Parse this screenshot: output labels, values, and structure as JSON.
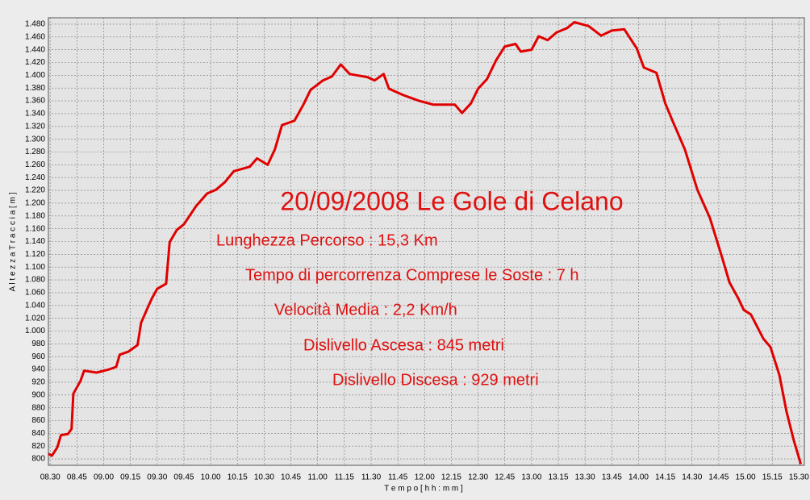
{
  "chart_data": {
    "type": "line",
    "title": "20/09/2008 Le Gole di Celano",
    "annotations": [
      "Lunghezza Percorso : 15,3 Km",
      "Tempo di percorrenza Comprese le Soste : 7 h",
      "Velocità Media : 2,2 Km/h",
      "Dislivello Ascesa : 845 metri",
      "Dislivello Discesa : 929 metri"
    ],
    "x_label": "T e m p o   [ h h : m m ]",
    "y_label": "A l t e z z a   T r a c c i a   [ m ]",
    "x": [
      509,
      511,
      514,
      516,
      520,
      522,
      523,
      527,
      529,
      536,
      543,
      547,
      549,
      554,
      559,
      561,
      564,
      567,
      570,
      575,
      577,
      581,
      585,
      592,
      598,
      603,
      608,
      613,
      622,
      626,
      632,
      636,
      640,
      647,
      652,
      656,
      663,
      668,
      673,
      678,
      688,
      692,
      697,
      700,
      708,
      717,
      725,
      737,
      741,
      746,
      750,
      755,
      760,
      765,
      771,
      774,
      780,
      784,
      789,
      794,
      800,
      804,
      812,
      819,
      825,
      832,
      839,
      843,
      850,
      855,
      859,
      866,
      873,
      880,
      887,
      891,
      896,
      899,
      903,
      910,
      914,
      919,
      923,
      927,
      931
    ],
    "series": [
      {
        "color": "#e00000",
        "values": [
          808,
          805,
          818,
          837,
          839,
          847,
          902,
          922,
          938,
          935,
          940,
          944,
          963,
          968,
          978,
          1013,
          1032,
          1051,
          1066,
          1074,
          1139,
          1158,
          1167,
          1196,
          1215,
          1221,
          1233,
          1250,
          1257,
          1270,
          1260,
          1284,
          1322,
          1329,
          1354,
          1377,
          1392,
          1398,
          1417,
          1402,
          1397,
          1392,
          1402,
          1379,
          1369,
          1360,
          1354,
          1354,
          1341,
          1356,
          1379,
          1394,
          1423,
          1445,
          1449,
          1437,
          1440,
          1461,
          1455,
          1467,
          1474,
          1483,
          1477,
          1462,
          1470,
          1472,
          1442,
          1412,
          1404,
          1356,
          1329,
          1284,
          1221,
          1177,
          1114,
          1076,
          1051,
          1033,
          1026,
          988,
          975,
          931,
          874,
          830,
          792
        ]
      }
    ],
    "xlim": [
      509,
      933
    ],
    "xticks": [
      {
        "value": 510,
        "label": "08.30"
      },
      {
        "value": 525,
        "label": "08.45"
      },
      {
        "value": 540,
        "label": "09.00"
      },
      {
        "value": 555,
        "label": "09.15"
      },
      {
        "value": 570,
        "label": "09.30"
      },
      {
        "value": 585,
        "label": "09.45"
      },
      {
        "value": 600,
        "label": "10.00"
      },
      {
        "value": 615,
        "label": "10.15"
      },
      {
        "value": 630,
        "label": "10.30"
      },
      {
        "value": 645,
        "label": "10.45"
      },
      {
        "value": 660,
        "label": "11.00"
      },
      {
        "value": 675,
        "label": "11.15"
      },
      {
        "value": 690,
        "label": "11.30"
      },
      {
        "value": 705,
        "label": "11.45"
      },
      {
        "value": 720,
        "label": "12.00"
      },
      {
        "value": 735,
        "label": "12.15"
      },
      {
        "value": 750,
        "label": "12.30"
      },
      {
        "value": 765,
        "label": "12.45"
      },
      {
        "value": 780,
        "label": "13.00"
      },
      {
        "value": 795,
        "label": "13.15"
      },
      {
        "value": 810,
        "label": "13.30"
      },
      {
        "value": 825,
        "label": "13.45"
      },
      {
        "value": 840,
        "label": "14.00"
      },
      {
        "value": 855,
        "label": "14.15"
      },
      {
        "value": 870,
        "label": "14.30"
      },
      {
        "value": 885,
        "label": "14.45"
      },
      {
        "value": 900,
        "label": "15.00"
      },
      {
        "value": 915,
        "label": "15.15"
      },
      {
        "value": 930,
        "label": "15.30"
      }
    ],
    "ylim": [
      790,
      1490
    ],
    "yticks": [
      800,
      820,
      840,
      860,
      880,
      900,
      920,
      940,
      960,
      980,
      {
        "value": 1000,
        "label": "1.000"
      },
      {
        "value": 1020,
        "label": "1.020"
      },
      {
        "value": 1040,
        "label": "1.040"
      },
      {
        "value": 1060,
        "label": "1.060"
      },
      {
        "value": 1080,
        "label": "1.080"
      },
      {
        "value": 1100,
        "label": "1.100"
      },
      {
        "value": 1120,
        "label": "1.120"
      },
      {
        "value": 1140,
        "label": "1.140"
      },
      {
        "value": 1160,
        "label": "1.160"
      },
      {
        "value": 1180,
        "label": "1.180"
      },
      {
        "value": 1200,
        "label": "1.200"
      },
      {
        "value": 1220,
        "label": "1.220"
      },
      {
        "value": 1240,
        "label": "1.240"
      },
      {
        "value": 1260,
        "label": "1.260"
      },
      {
        "value": 1280,
        "label": "1.280"
      },
      {
        "value": 1300,
        "label": "1.300"
      },
      {
        "value": 1320,
        "label": "1.320"
      },
      {
        "value": 1340,
        "label": "1.340"
      },
      {
        "value": 1360,
        "label": "1.360"
      },
      {
        "value": 1380,
        "label": "1.380"
      },
      {
        "value": 1400,
        "label": "1.400"
      },
      {
        "value": 1420,
        "label": "1.420"
      },
      {
        "value": 1440,
        "label": "1.440"
      },
      {
        "value": 1460,
        "label": "1.460"
      },
      {
        "value": 1480,
        "label": "1.480"
      }
    ],
    "grid": true
  }
}
